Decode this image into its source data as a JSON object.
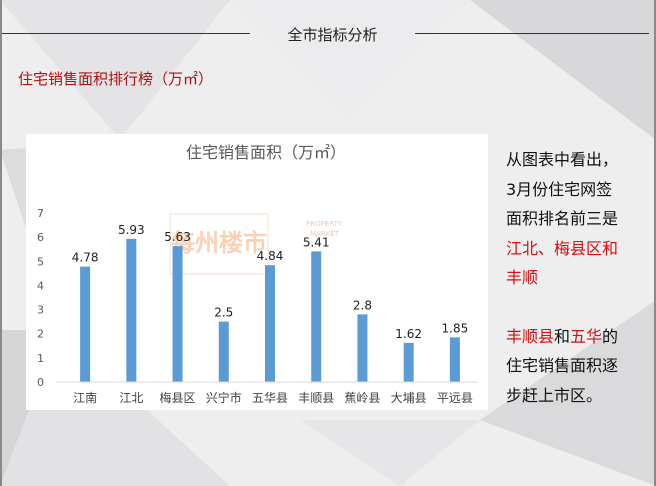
{
  "header": {
    "title": "全市指标分析"
  },
  "section": {
    "title": "住宅销售面积排行榜（万㎡）"
  },
  "watermark": {
    "line1": "PROPERTY",
    "line2": "MARKET"
  },
  "side_note": {
    "line1": "从图表中看出，",
    "line2": "3月份住宅网签",
    "line3": "面积排名前三是",
    "line4_red": "江北、梅县区和",
    "line5_red": "丰顺",
    "line6_red_a": "丰顺县",
    "line6_black": "和",
    "line6_red_b": "五华",
    "line6_tail": "的",
    "line7": "住宅销售面积逐",
    "line8": "步赶上市区。"
  },
  "colors": {
    "bar": "#5b9bd5",
    "accent_red": "#d81010",
    "title_red": "#b01010"
  },
  "chart_data": {
    "type": "bar",
    "title": "住宅销售面积（万㎡）",
    "categories": [
      "江南",
      "江北",
      "梅县区",
      "兴宁市",
      "五华县",
      "丰顺县",
      "蕉岭县",
      "大埔县",
      "平远县"
    ],
    "values": [
      4.78,
      5.93,
      5.63,
      2.5,
      4.84,
      5.41,
      2.8,
      1.62,
      1.85
    ],
    "value_labels": [
      "4.78",
      "5.93",
      "5.63",
      "2.5",
      "4.84",
      "5.41",
      "2.8",
      "1.62",
      "1.85"
    ],
    "yticks": [
      "0",
      "1",
      "2",
      "3",
      "4",
      "5",
      "6",
      "7"
    ],
    "ylim": [
      0,
      7
    ],
    "grid": false,
    "legend": "none"
  }
}
